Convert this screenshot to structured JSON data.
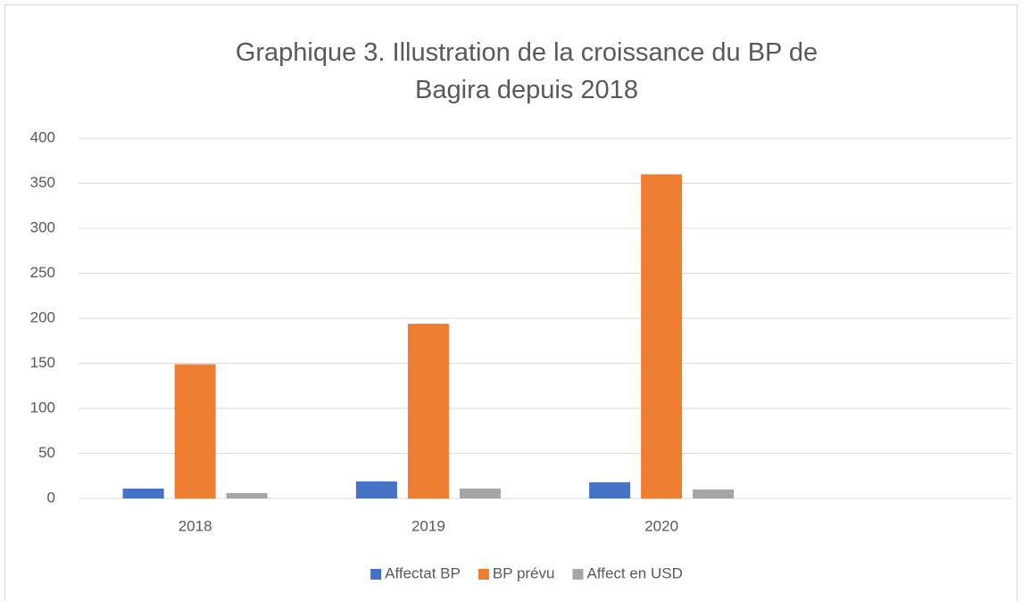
{
  "chart_data": {
    "type": "bar",
    "title": "Graphique 3. Illustration de la croissance du BP de Bagira depuis 2018",
    "categories": [
      "2018",
      "2019",
      "2020",
      null
    ],
    "series": [
      {
        "name": "Affectat BP",
        "color": "#4472c4",
        "values": [
          11,
          19,
          18,
          null
        ]
      },
      {
        "name": "BP prévu",
        "color": "#ed7d31",
        "values": [
          149,
          194,
          360,
          null
        ]
      },
      {
        "name": "Affect en USD",
        "color": "#a5a5a5",
        "values": [
          6,
          11,
          10,
          null
        ]
      }
    ],
    "ylim": [
      0,
      400
    ],
    "yticks": [
      0,
      50,
      100,
      150,
      200,
      250,
      300,
      350,
      400
    ],
    "grid": true,
    "legend": "bottom"
  }
}
